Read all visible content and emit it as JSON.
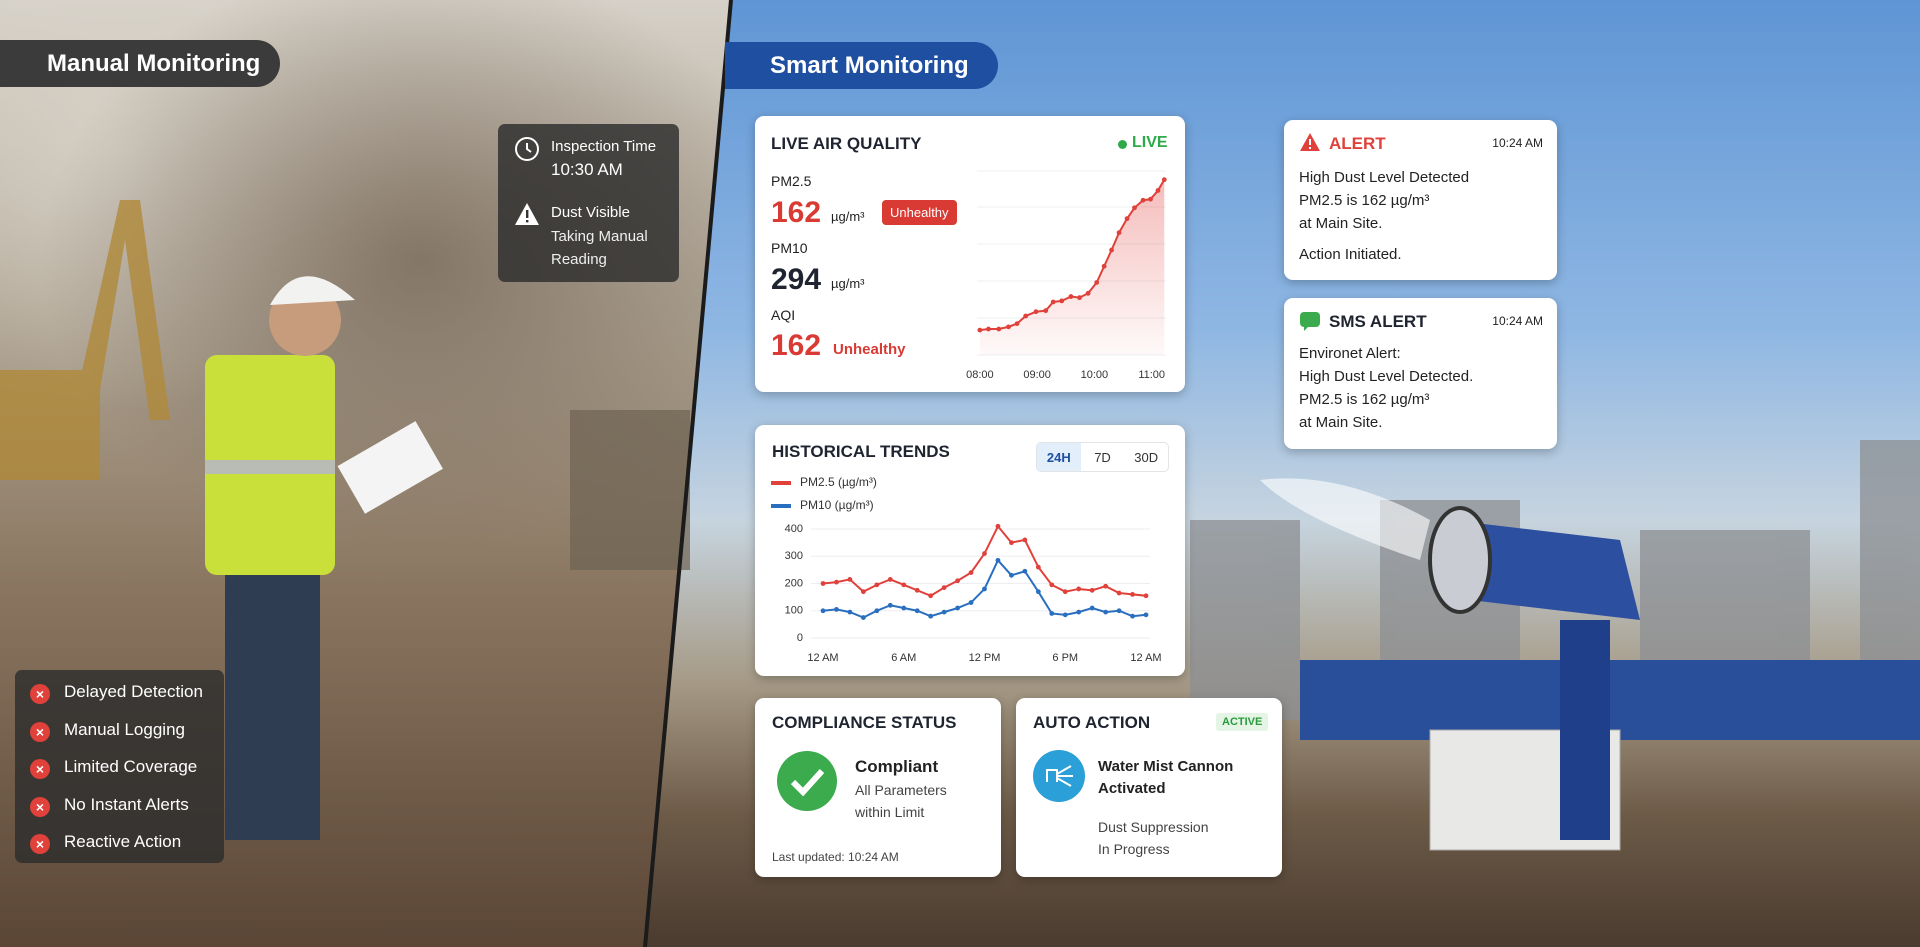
{
  "manual": {
    "title": "Manual Monitoring",
    "inspection": {
      "label": "Inspection Time",
      "time": "10:30 AM",
      "status": "Dust Visible",
      "note_lines": [
        "Taking Manual",
        "Reading"
      ]
    },
    "issues": [
      "Delayed Detection",
      "Manual Logging",
      "Limited Coverage",
      "No Instant Alerts",
      "Reactive Action"
    ]
  },
  "smart": {
    "title": "Smart Monitoring"
  },
  "live_air_quality": {
    "title": "LIVE AIR QUALITY",
    "live": "LIVE",
    "pm25": {
      "label": "PM2.5",
      "value": 162,
      "unit": "µg/m³",
      "badge": "Unhealthy"
    },
    "pm10": {
      "label": "PM10",
      "value": 294,
      "unit": "µg/m³"
    },
    "aqi": {
      "label": "AQI",
      "value": 162,
      "status": "Unhealthy"
    },
    "chart": {
      "type": "line",
      "color": "#e0413b",
      "x": [
        8.0,
        8.15,
        8.33,
        8.5,
        8.65,
        8.8,
        8.98,
        9.15,
        9.28,
        9.43,
        9.59,
        9.74,
        9.89,
        10.04,
        10.17,
        10.3,
        10.43,
        10.57,
        10.7,
        10.85,
        10.98,
        11.11,
        11.22
      ],
      "values": [
        23,
        24,
        24,
        26,
        29,
        36,
        40,
        41,
        49,
        50,
        54,
        53,
        57,
        67,
        82,
        97,
        113,
        126,
        136,
        143,
        144,
        152,
        162
      ],
      "xlim": [
        7.95,
        11.25
      ],
      "ylim": [
        0,
        170
      ],
      "xticks": [
        {
          "value": 8,
          "label": "08:00"
        },
        {
          "value": 9,
          "label": "09:00"
        },
        {
          "value": 10,
          "label": "10:00"
        },
        {
          "value": 11,
          "label": "11:00"
        }
      ]
    }
  },
  "historical_trends": {
    "title": "HISTORICAL TRENDS",
    "tabs": [
      "24H",
      "7D",
      "30D"
    ],
    "chart": {
      "type": "line",
      "x": [
        0,
        1,
        2,
        3,
        4,
        5,
        6,
        7,
        8,
        9,
        10,
        11,
        12,
        13,
        14,
        15,
        16,
        17,
        18,
        19,
        20,
        21,
        22,
        23,
        24
      ],
      "xlim": [
        0,
        24
      ],
      "ylim": [
        0,
        400
      ],
      "yticks": [
        0,
        100,
        200,
        300,
        400
      ],
      "grid": true,
      "xticks": [
        {
          "value": 0,
          "label": "12 AM"
        },
        {
          "value": 6,
          "label": "6 AM"
        },
        {
          "value": 12,
          "label": "12 PM"
        },
        {
          "value": 18,
          "label": "6 PM"
        },
        {
          "value": 24,
          "label": "12 AM"
        }
      ],
      "series": [
        {
          "name": "PM2.5 (µg/m³)",
          "color": "#e0413b",
          "values": [
            200,
            205,
            215,
            170,
            195,
            215,
            195,
            175,
            155,
            185,
            210,
            240,
            310,
            410,
            350,
            360,
            260,
            195,
            170,
            180,
            175,
            190,
            165,
            160,
            155
          ]
        },
        {
          "name": "PM10 (µg/m³)",
          "color": "#2a6fbf",
          "values": [
            100,
            105,
            95,
            75,
            100,
            120,
            110,
            100,
            80,
            95,
            110,
            130,
            180,
            285,
            230,
            245,
            170,
            90,
            85,
            95,
            110,
            95,
            100,
            80,
            85
          ]
        }
      ]
    }
  },
  "compliance": {
    "title": "COMPLIANCE STATUS",
    "status": "Compliant",
    "detail_lines": [
      "All Parameters",
      "within Limit"
    ],
    "updated": "Last updated: 10:24 AM"
  },
  "auto_action": {
    "title": "AUTO ACTION",
    "badge": "ACTIVE",
    "action_lines": [
      "Water Mist Cannon",
      "Activated"
    ],
    "status_lines": [
      "Dust Suppression",
      "In Progress"
    ]
  },
  "alert": {
    "title": "ALERT",
    "time": "10:24 AM",
    "lines": [
      "High Dust Level Detected",
      "PM2.5 is 162 µg/m³",
      "at Main Site.",
      "Action Initiated."
    ]
  },
  "sms_alert": {
    "title": "SMS ALERT",
    "time": "10:24 AM",
    "lines": [
      "Environet Alert:",
      "High Dust Level Detected.",
      "PM2.5 is 162 µg/m³",
      "at Main Site."
    ]
  }
}
